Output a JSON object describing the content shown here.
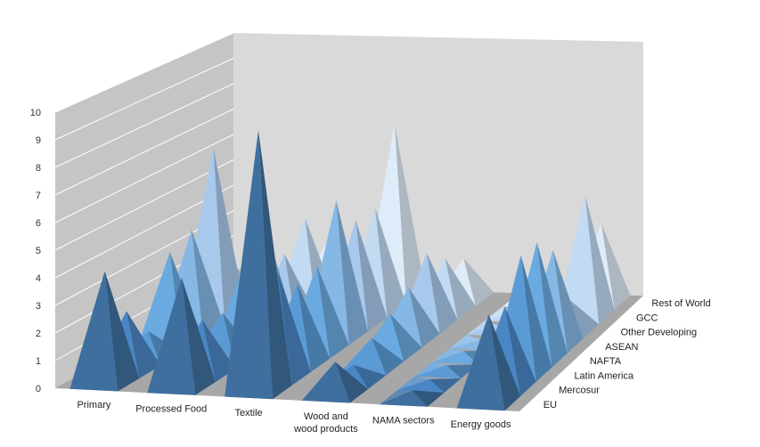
{
  "chart_data": {
    "type": "bar",
    "subtype": "3d-pyramid",
    "title": "",
    "xlabel": "",
    "ylabel": "",
    "ylim": [
      0,
      10
    ],
    "yticks": [
      "0",
      "1",
      "2",
      "3",
      "4",
      "5",
      "6",
      "7",
      "8",
      "9",
      "10"
    ],
    "grid": true,
    "legend": "none",
    "categories": [
      "Primary",
      "Processed Food",
      "Textile",
      "Wood and wood products",
      "NAMA sectors",
      "Energy goods"
    ],
    "category_lines": [
      [
        "Primary"
      ],
      [
        "Processed Food"
      ],
      [
        "Textile"
      ],
      [
        "Wood and",
        "wood products"
      ],
      [
        "NAMA sectors"
      ],
      [
        "Energy goods"
      ]
    ],
    "series": [
      {
        "name": "EU",
        "values": [
          4.1,
          4.0,
          9.5,
          1.2,
          0.3,
          3.2
        ]
      },
      {
        "name": "Mercosur",
        "values": [
          2.2,
          2.0,
          3.9,
          0.6,
          0.2,
          3.0
        ]
      },
      {
        "name": "Latin America",
        "values": [
          1.0,
          1.8,
          3.0,
          1.1,
          0.2,
          4.4
        ]
      },
      {
        "name": "NAFTA",
        "values": [
          3.5,
          3.0,
          3.2,
          1.5,
          0.2,
          4.4
        ]
      },
      {
        "name": "ASEAN",
        "values": [
          3.9,
          4.3,
          5.2,
          2.0,
          0.1,
          3.6
        ]
      },
      {
        "name": "Other Developing",
        "values": [
          6.6,
          2.6,
          4.0,
          2.8,
          0.1,
          1.2
        ]
      },
      {
        "name": "GCC",
        "values": [
          1.6,
          3.5,
          4.0,
          2.1,
          0.1,
          4.7
        ]
      },
      {
        "name": "Rest of World",
        "values": [
          1.0,
          2.0,
          6.8,
          1.6,
          0.1,
          3.1
        ]
      }
    ],
    "series_colors": [
      "#3f6f9e",
      "#4a86c4",
      "#5b9bd5",
      "#6aaae0",
      "#86b8e6",
      "#a8c9ec",
      "#c2daf2",
      "#deebf8"
    ]
  }
}
